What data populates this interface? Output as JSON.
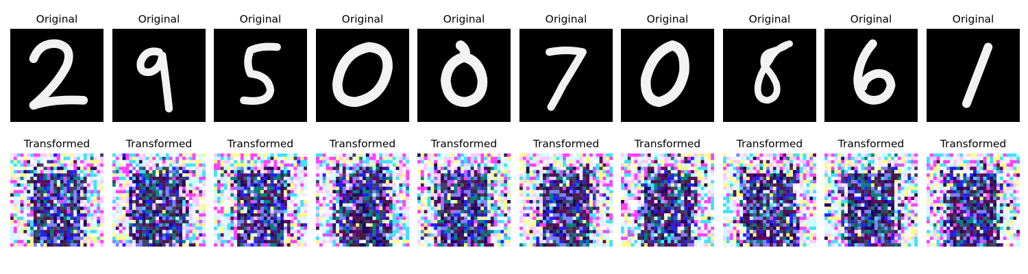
{
  "figure": {
    "rows": [
      {
        "row_id": "original",
        "panels": [
          {
            "title": "Original",
            "digit": "2"
          },
          {
            "title": "Original",
            "digit": "9"
          },
          {
            "title": "Original",
            "digit": "5"
          },
          {
            "title": "Original",
            "digit": "0"
          },
          {
            "title": "Original",
            "digit": "0"
          },
          {
            "title": "Original",
            "digit": "7"
          },
          {
            "title": "Original",
            "digit": "0"
          },
          {
            "title": "Original",
            "digit": "8"
          },
          {
            "title": "Original",
            "digit": "6"
          },
          {
            "title": "Original",
            "digit": "1"
          }
        ]
      },
      {
        "row_id": "transformed",
        "panels": [
          {
            "title": "Transformed"
          },
          {
            "title": "Transformed"
          },
          {
            "title": "Transformed"
          },
          {
            "title": "Transformed"
          },
          {
            "title": "Transformed"
          },
          {
            "title": "Transformed"
          },
          {
            "title": "Transformed"
          },
          {
            "title": "Transformed"
          },
          {
            "title": "Transformed"
          },
          {
            "title": "Transformed"
          }
        ]
      }
    ],
    "colors": {
      "original_background": "#000000",
      "original_stroke": "#f2f2f2",
      "transformed_palette": [
        "#ffffff",
        "#f0f0ff",
        "#ffc8ff",
        "#ff40ff",
        "#c8ffff",
        "#40e0ff",
        "#ffff80",
        "#8080ff",
        "#2020ff",
        "#200060",
        "#402040",
        "#008080",
        "#404060",
        "#600060"
      ]
    }
  }
}
